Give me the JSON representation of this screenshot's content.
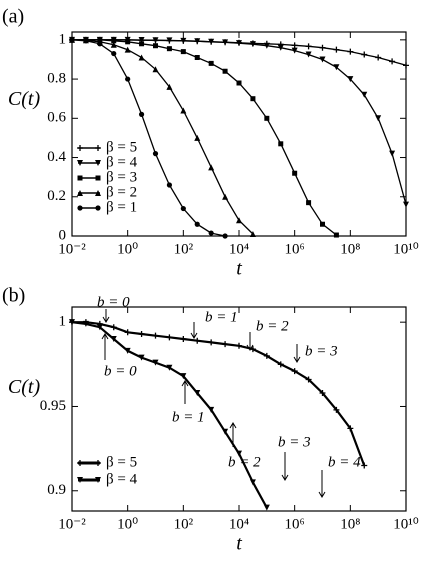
{
  "chart_data": [
    {
      "type": "line",
      "panel": "(a)",
      "ylabel": "C(t)",
      "xlabel": "t",
      "xscale": "log",
      "xlim": [
        0.01,
        10000000000.0
      ],
      "ylim": [
        0,
        1.04
      ],
      "legend": "lower left",
      "xticks": [
        {
          "value": 0.01,
          "label": "10⁻²"
        },
        {
          "value": 1,
          "label": "10⁰"
        },
        {
          "value": 100,
          "label": "10²"
        },
        {
          "value": 10000,
          "label": "10⁴"
        },
        {
          "value": 1000000,
          "label": "10⁶"
        },
        {
          "value": 100000000,
          "label": "10⁸"
        },
        {
          "value": 10000000000,
          "label": "10¹⁰"
        }
      ],
      "yticks": [
        0,
        0.2,
        0.4,
        0.6,
        0.8,
        1
      ],
      "x": [
        0.01,
        0.0316,
        0.1,
        0.316,
        1,
        3.16,
        10,
        31.6,
        100,
        316,
        1000,
        3162,
        10000,
        31623,
        100000,
        316228,
        1000000,
        3162278,
        10000000,
        31622777,
        100000000,
        316227766,
        1000000000,
        3162277660,
        10000000000
      ],
      "series": [
        {
          "name": "β = 5",
          "color": "#000000",
          "marker": "plus",
          "values": [
            1,
            1,
            1,
            1,
            0.999,
            0.998,
            0.997,
            0.996,
            0.995,
            0.993,
            0.99,
            0.988,
            0.985,
            0.982,
            0.98,
            0.977,
            0.972,
            0.967,
            0.96,
            0.95,
            0.94,
            0.925,
            0.91,
            0.89,
            0.87
          ]
        },
        {
          "name": "β = 4",
          "color": "#000000",
          "marker": "tri-down",
          "values": [
            1,
            1,
            1,
            1,
            1,
            0.999,
            0.998,
            0.997,
            0.995,
            0.993,
            0.99,
            0.987,
            0.983,
            0.978,
            0.97,
            0.96,
            0.945,
            0.925,
            0.9,
            0.86,
            0.8,
            0.72,
            0.6,
            0.42,
            0.16
          ]
        },
        {
          "name": "β = 3",
          "color": "#000000",
          "marker": "square",
          "values": [
            1,
            1,
            1,
            0.995,
            0.99,
            0.98,
            0.97,
            0.955,
            0.94,
            0.91,
            0.88,
            0.84,
            0.78,
            0.7,
            0.6,
            0.47,
            0.32,
            0.17,
            0.06,
            0.005,
            null,
            null,
            null,
            null,
            null
          ]
        },
        {
          "name": "β = 2",
          "color": "#000000",
          "marker": "tri-up",
          "values": [
            1,
            0.998,
            0.99,
            0.975,
            0.95,
            0.91,
            0.85,
            0.76,
            0.64,
            0.5,
            0.35,
            0.2,
            0.08,
            0.01,
            null,
            null,
            null,
            null,
            null,
            null,
            null,
            null,
            null,
            null,
            null
          ]
        },
        {
          "name": "β = 1",
          "color": "#000000",
          "marker": "circle",
          "values": [
            1,
            0.995,
            0.98,
            0.93,
            0.8,
            0.62,
            0.42,
            0.26,
            0.14,
            0.06,
            0.015,
            0,
            null,
            null,
            null,
            null,
            null,
            null,
            null,
            null,
            null,
            null,
            null,
            null,
            null
          ]
        }
      ]
    },
    {
      "type": "line",
      "panel": "(b)",
      "ylabel": "C(t)",
      "xlabel": "t",
      "xscale": "log",
      "xlim": [
        0.01,
        10000000000.0
      ],
      "ylim": [
        0.888,
        1.009
      ],
      "legend": "lower left",
      "xticks": [
        {
          "value": 0.01,
          "label": "10⁻²"
        },
        {
          "value": 1,
          "label": "10⁰"
        },
        {
          "value": 100,
          "label": "10²"
        },
        {
          "value": 10000,
          "label": "10⁴"
        },
        {
          "value": 1000000,
          "label": "10⁶"
        },
        {
          "value": 100000000,
          "label": "10⁸"
        },
        {
          "value": 10000000000,
          "label": "10¹⁰"
        }
      ],
      "yticks": [
        0.9,
        0.95,
        1
      ],
      "x": [
        0.01,
        0.0316,
        0.1,
        0.316,
        1,
        3.16,
        10,
        31.6,
        100,
        316,
        1000,
        3162,
        10000,
        31623,
        100000,
        316228,
        1000000,
        3162278,
        10000000,
        31622777,
        100000000,
        316227766,
        1000000000,
        3162277660,
        10000000000
      ],
      "series": [
        {
          "name": "β = 5",
          "color": "#000000",
          "marker": "plus",
          "values": [
            1,
            1,
            0.999,
            0.997,
            0.994,
            0.993,
            0.992,
            0.991,
            0.99,
            0.989,
            0.988,
            0.987,
            0.986,
            0.984,
            0.98,
            0.975,
            0.971,
            0.966,
            0.958,
            0.948,
            0.937,
            0.915,
            null,
            null,
            null
          ]
        },
        {
          "name": "β = 4",
          "color": "#000000",
          "marker": "tri-down",
          "values": [
            1,
            0.999,
            0.997,
            0.99,
            0.983,
            0.979,
            0.976,
            0.973,
            0.968,
            0.958,
            0.948,
            0.935,
            0.922,
            0.905,
            0.89,
            null,
            null,
            null,
            null,
            null,
            null,
            null,
            null,
            null,
            null
          ]
        }
      ],
      "annotations": [
        "b = 0",
        "b = 1",
        "b = 2",
        "b = 3",
        "b = 0",
        "b = 1",
        "b = 2",
        "b = 3",
        "b = 4"
      ]
    }
  ]
}
